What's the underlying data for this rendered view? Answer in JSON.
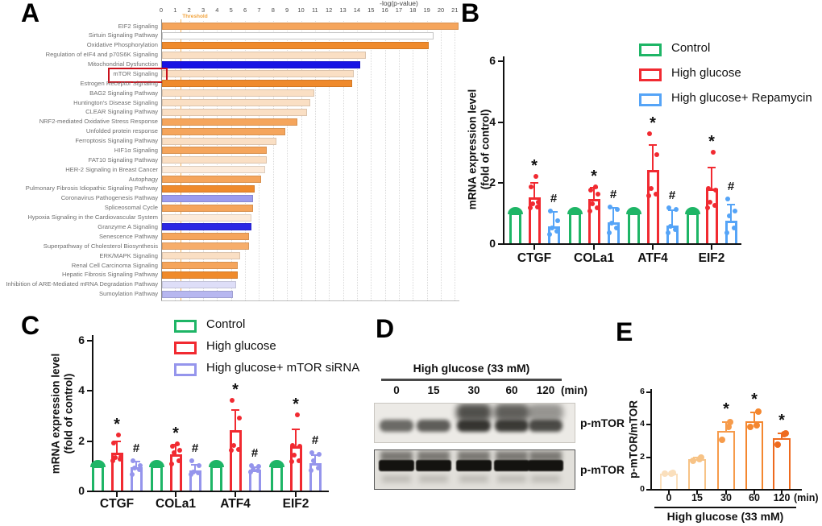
{
  "figure": {
    "panels": {
      "a": "A",
      "b": "B",
      "c": "C",
      "d": "D",
      "e": "E"
    }
  },
  "chart_data": [
    {
      "id": "A",
      "type": "bar",
      "orientation": "horizontal",
      "xlabel": "-log(p-value)",
      "xlim": [
        0,
        21.3
      ],
      "xticks": [
        0,
        1,
        2,
        3,
        4,
        5,
        6,
        7,
        8,
        9,
        10,
        11,
        12,
        13,
        14,
        15,
        16,
        17,
        18,
        19,
        20,
        21
      ],
      "threshold": {
        "label": "Threshold",
        "value": 1.4,
        "color": "#F2A33C"
      },
      "highlighted_category": "mTOR Signaling",
      "highlight_box_color": "#C8101B",
      "categories": [
        "EIF2 Signaling",
        "Sirtuin Signaling Pathway",
        "Oxidative Phosphorylation",
        "Regulation of eIF4 and p70S6K Signaling",
        "Mitochondrial Dysfunction",
        "mTOR Signaling",
        "Estrogen Receptor Signaling",
        "BAG2 Signaling Pathway",
        "Huntington's Disease Signaling",
        "CLEAR Signaling Pathway",
        "NRF2-mediated Oxidative Stress Response",
        "Unfolded protein response",
        "Ferroptosis Signaling Pathway",
        "HIF1α Signaling",
        "FAT10 Signaling Pathway",
        "HER-2 Signaling in Breast Cancer",
        "Autophagy",
        "Pulmonary Fibrosis Idiopathic Signaling Pathway",
        "Coronavirus Pathogenesis Pathway",
        "Spliceosomal Cycle",
        "Hypoxia Signaling in the Cardiovascular System",
        "Granzyme A Signaling",
        "Senescence Pathway",
        "Superpathway of Cholesterol Biosynthesis",
        "ERK/MAPK Signaling",
        "Renal Cell Carcinoma Signaling",
        "Hepatic Fibrosis Signaling Pathway",
        "Inhibition of ARE-Mediated mRNA Degradation Pathway",
        "Sumoylation Pathway"
      ],
      "values": [
        21.2,
        19.4,
        19.1,
        14.6,
        14.2,
        13.7,
        13.6,
        10.9,
        10.6,
        10.4,
        9.7,
        8.8,
        8.2,
        7.5,
        7.5,
        7.4,
        7.1,
        6.6,
        6.5,
        6.5,
        6.4,
        6.4,
        6.2,
        6.2,
        5.6,
        5.4,
        5.4,
        5.3,
        5.1
      ],
      "colors": [
        "#F5A55C",
        "#FFFFFF",
        "#EF8A2C",
        "#FADFC4",
        "#1613E4",
        "#FADFC4",
        "#EF8A2C",
        "#FADFC4",
        "#FADFC4",
        "#FADFC4",
        "#F5A55C",
        "#F5A55C",
        "#FADFC4",
        "#F5A55C",
        "#FADFC4",
        "#FCEBDB",
        "#F5A55C",
        "#EF8A2C",
        "#9B9BEF",
        "#F5A55C",
        "#FCEBDB",
        "#2B28E4",
        "#F5A55C",
        "#F6AD6B",
        "#FADFC4",
        "#F5A55C",
        "#EF8A2C",
        "#DEDEF8",
        "#B7B7F0"
      ]
    },
    {
      "id": "B",
      "type": "grouped-bar",
      "ylabel_line1": "mRNA expression level",
      "ylabel_line2": "(fold of control)",
      "ylim": [
        0,
        6
      ],
      "yticks": [
        0,
        2,
        4,
        6
      ],
      "categories": [
        "CTGF",
        "COLa1",
        "ATF4",
        "EIF2"
      ],
      "series": [
        {
          "name": "Control",
          "color": "#1EB566",
          "cap": "dome",
          "values": [
            1,
            1,
            1,
            1
          ]
        },
        {
          "name": "High glucose",
          "color": "#F12A31",
          "sig": "*",
          "values": [
            1.5,
            1.45,
            2.4,
            1.8
          ],
          "errors": [
            0.5,
            0.4,
            0.85,
            0.7
          ],
          "dots": [
            [
              1.15,
              1.2,
              1.3,
              1.35,
              1.85,
              2.2
            ],
            [
              1.05,
              1.15,
              1.3,
              1.6,
              1.75,
              1.85
            ],
            [
              1.55,
              1.6,
              1.8,
              2.9,
              3.6
            ],
            [
              1.15,
              1.25,
              1.35,
              1.75,
              1.8,
              3.0
            ]
          ]
        },
        {
          "name": "High glucose+ Repamycin",
          "color": "#55A4F7",
          "sig": "#",
          "values": [
            0.55,
            0.68,
            0.58,
            0.75
          ],
          "errors": [
            0.5,
            0.52,
            0.52,
            0.55
          ],
          "dots": [
            [
              0.3,
              0.4,
              0.5,
              0.75,
              1.05
            ],
            [
              0.35,
              0.5,
              0.65,
              1.1,
              1.2
            ],
            [
              0.35,
              0.45,
              0.55,
              1.1,
              1.15
            ],
            [
              0.35,
              0.5,
              0.9,
              1.05,
              1.45
            ]
          ]
        }
      ]
    },
    {
      "id": "C",
      "type": "grouped-bar",
      "ylabel_line1": "mRNA expression level",
      "ylabel_line2": "(fold of control)",
      "ylim": [
        0,
        6
      ],
      "yticks": [
        0,
        2,
        4,
        6
      ],
      "categories": [
        "CTGF",
        "COLa1",
        "ATF4",
        "EIF2"
      ],
      "series": [
        {
          "name": "Control",
          "color": "#1EB566",
          "cap": "dome",
          "values": [
            1,
            1,
            1,
            1
          ]
        },
        {
          "name": "High glucose",
          "color": "#F12A31",
          "sig": "*",
          "values": [
            1.5,
            1.43,
            2.4,
            1.75
          ],
          "errors": [
            0.5,
            0.42,
            0.85,
            0.72
          ],
          "dots": [
            [
              1.2,
              1.25,
              1.3,
              1.35,
              1.9,
              2.2
            ],
            [
              1.05,
              1.2,
              1.5,
              1.6,
              1.75,
              1.85
            ],
            [
              1.6,
              1.65,
              1.8,
              2.9,
              3.6
            ],
            [
              1.15,
              1.2,
              1.4,
              1.75,
              1.8,
              3.0
            ]
          ]
        },
        {
          "name": "High glucose+ mTOR siRNA",
          "color": "#9595EC",
          "sig": "#",
          "values": [
            0.92,
            0.8,
            0.85,
            1.1
          ],
          "errors": [
            0.28,
            0.25,
            0.12,
            0.35
          ],
          "dots": [
            [
              0.65,
              0.85,
              0.9,
              1.0,
              1.2
            ],
            [
              0.65,
              0.7,
              0.75,
              1.0,
              1.2
            ],
            [
              0.75,
              0.8,
              0.85,
              0.95,
              1.0
            ],
            [
              0.8,
              0.9,
              1.2,
              1.45,
              1.5
            ]
          ]
        }
      ]
    },
    {
      "id": "E",
      "type": "bar",
      "ylabel": "p-mTOR/mTOR",
      "ylim": [
        0,
        6
      ],
      "yticks": [
        0,
        2,
        4,
        6
      ],
      "categories": [
        "0",
        "15",
        "30",
        "60",
        "120"
      ],
      "x_unit": "(min)",
      "group_label": "High glucose (33 mM)",
      "values": [
        0.95,
        1.85,
        3.55,
        4.15,
        3.1
      ],
      "errors": [
        0,
        0.15,
        0.6,
        0.6,
        0.35
      ],
      "sig": [
        "",
        "",
        "*",
        "*",
        "*"
      ],
      "bar_colors": [
        "#FADFBC",
        "#F7C386",
        "#F69B4B",
        "#F4872F",
        "#EE6A1E"
      ],
      "dots": [
        [
          0.93,
          0.95,
          0.97
        ],
        [
          1.75,
          1.85,
          1.95
        ],
        [
          3.0,
          3.8,
          4.1
        ],
        [
          3.8,
          3.9,
          4.75
        ],
        [
          2.75,
          3.35,
          3.4
        ]
      ]
    }
  ],
  "blot": {
    "id": "D",
    "header": "High glucose (33 mM)",
    "lanes": [
      "0",
      "15",
      "30",
      "60",
      "120"
    ],
    "lane_unit": "(min)",
    "rows": [
      {
        "label": "p-mTOR",
        "band_intensity": [
          0.5,
          0.62,
          1.0,
          0.95,
          0.8
        ],
        "smear": [
          0,
          0,
          1,
          0.9,
          0.55
        ]
      },
      {
        "label": "p-mTOR",
        "band_intensity": [
          1,
          1,
          1,
          1,
          1
        ],
        "smear": [
          0.5,
          0.5,
          0.5,
          0.5,
          0.5
        ]
      }
    ]
  }
}
